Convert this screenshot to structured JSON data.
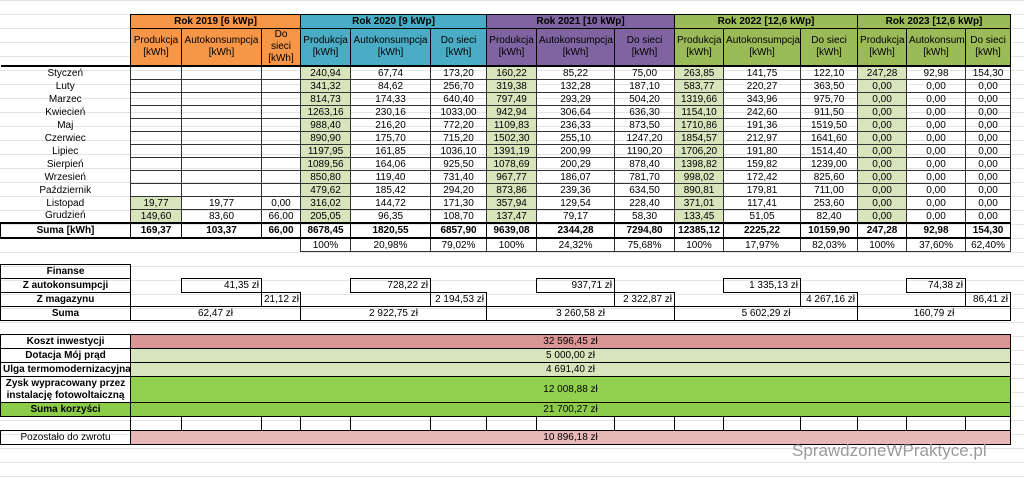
{
  "years": [
    {
      "title": "Rok 2019 [6 kWp]",
      "color": "#f79646"
    },
    {
      "title": "Rok 2020 [9 kWp]",
      "color": "#4bacc6"
    },
    {
      "title": "Rok 2021 [10 kWp]",
      "color": "#8064a2"
    },
    {
      "title": "Rok 2022 [12,6 kWp]",
      "color": "#9bbb59"
    },
    {
      "title": "Rok 2023 [12,6 kWp]",
      "color": "#9bbb59"
    }
  ],
  "col_headers": [
    [
      "Produkcja [kWh]",
      "Autokonsumpcja [kWh]",
      "Do sieci [kWh]"
    ],
    [
      "Produkcja [kWh]",
      "Autokonsumpcja [kWh]",
      "Do sieci [kWh]"
    ],
    [
      "Produkcja [kWh]",
      "Autokonsumpcja [kWh]",
      "Do sieci [kWh]"
    ],
    [
      "Produkcja [kWh]",
      "Autokonsumpcja [kWh]",
      "Do sieci [kWh]"
    ],
    [
      "Produkcja [kWh]",
      "Autokonsumpcja [kWh]",
      "Do sieci [kWh]"
    ]
  ],
  "months": [
    {
      "name": "Styczeń",
      "vals": [
        [
          "",
          "",
          ""
        ],
        [
          "240,94",
          "67,74",
          "173,20"
        ],
        [
          "160,22",
          "85,22",
          "75,00"
        ],
        [
          "263,85",
          "141,75",
          "122,10"
        ],
        [
          "247,28",
          "92,98",
          "154,30"
        ]
      ]
    },
    {
      "name": "Luty",
      "vals": [
        [
          "",
          "",
          ""
        ],
        [
          "341,32",
          "84,62",
          "256,70"
        ],
        [
          "319,38",
          "132,28",
          "187,10"
        ],
        [
          "583,77",
          "220,27",
          "363,50"
        ],
        [
          "0,00",
          "0,00",
          "0,00"
        ]
      ]
    },
    {
      "name": "Marzec",
      "vals": [
        [
          "",
          "",
          ""
        ],
        [
          "814,73",
          "174,33",
          "640,40"
        ],
        [
          "797,49",
          "293,29",
          "504,20"
        ],
        [
          "1319,66",
          "343,96",
          "975,70"
        ],
        [
          "0,00",
          "0,00",
          "0,00"
        ]
      ]
    },
    {
      "name": "Kwiecień",
      "vals": [
        [
          "",
          "",
          ""
        ],
        [
          "1263,16",
          "230,16",
          "1033,00"
        ],
        [
          "942,94",
          "306,64",
          "636,30"
        ],
        [
          "1154,10",
          "242,60",
          "911,50"
        ],
        [
          "0,00",
          "0,00",
          "0,00"
        ]
      ]
    },
    {
      "name": "Maj",
      "vals": [
        [
          "",
          "",
          ""
        ],
        [
          "988,40",
          "216,20",
          "772,20"
        ],
        [
          "1109,83",
          "236,33",
          "873,50"
        ],
        [
          "1710,86",
          "191,36",
          "1519,50"
        ],
        [
          "0,00",
          "0,00",
          "0,00"
        ]
      ]
    },
    {
      "name": "Czerwiec",
      "vals": [
        [
          "",
          "",
          ""
        ],
        [
          "890,90",
          "175,70",
          "715,20"
        ],
        [
          "1502,30",
          "255,10",
          "1247,20"
        ],
        [
          "1854,57",
          "212,97",
          "1641,60"
        ],
        [
          "0,00",
          "0,00",
          "0,00"
        ]
      ]
    },
    {
      "name": "Lipiec",
      "vals": [
        [
          "",
          "",
          ""
        ],
        [
          "1197,95",
          "161,85",
          "1036,10"
        ],
        [
          "1391,19",
          "200,99",
          "1190,20"
        ],
        [
          "1706,20",
          "191,80",
          "1514,40"
        ],
        [
          "0,00",
          "0,00",
          "0,00"
        ]
      ]
    },
    {
      "name": "Sierpień",
      "vals": [
        [
          "",
          "",
          ""
        ],
        [
          "1089,56",
          "164,06",
          "925,50"
        ],
        [
          "1078,69",
          "200,29",
          "878,40"
        ],
        [
          "1398,82",
          "159,82",
          "1239,00"
        ],
        [
          "0,00",
          "0,00",
          "0,00"
        ]
      ]
    },
    {
      "name": "Wrzesień",
      "vals": [
        [
          "",
          "",
          ""
        ],
        [
          "850,80",
          "119,40",
          "731,40"
        ],
        [
          "967,77",
          "186,07",
          "781,70"
        ],
        [
          "998,02",
          "172,42",
          "825,60"
        ],
        [
          "0,00",
          "0,00",
          "0,00"
        ]
      ]
    },
    {
      "name": "Październik",
      "vals": [
        [
          "",
          "",
          ""
        ],
        [
          "479,62",
          "185,42",
          "294,20"
        ],
        [
          "873,86",
          "239,36",
          "634,50"
        ],
        [
          "890,81",
          "179,81",
          "711,00"
        ],
        [
          "0,00",
          "0,00",
          "0,00"
        ]
      ]
    },
    {
      "name": "Listopad",
      "vals": [
        [
          "19,77",
          "19,77",
          "0,00"
        ],
        [
          "316,02",
          "144,72",
          "171,30"
        ],
        [
          "357,94",
          "129,54",
          "228,40"
        ],
        [
          "371,01",
          "117,41",
          "253,60"
        ],
        [
          "0,00",
          "0,00",
          "0,00"
        ]
      ]
    },
    {
      "name": "Grudzień",
      "vals": [
        [
          "149,60",
          "83,60",
          "66,00"
        ],
        [
          "205,05",
          "96,35",
          "108,70"
        ],
        [
          "137,47",
          "79,17",
          "58,30"
        ],
        [
          "133,45",
          "51,05",
          "82,40"
        ],
        [
          "0,00",
          "0,00",
          "0,00"
        ]
      ]
    }
  ],
  "sum": {
    "label": "Suma [kWh]",
    "vals": [
      [
        "169,37",
        "103,37",
        "66,00"
      ],
      [
        "8678,45",
        "1820,55",
        "6857,90"
      ],
      [
        "9639,08",
        "2344,28",
        "7294,80"
      ],
      [
        "12385,12",
        "2225,22",
        "10159,90"
      ],
      [
        "247,28",
        "92,98",
        "154,30"
      ]
    ]
  },
  "pct": [
    [
      "",
      "",
      ""
    ],
    [
      "100%",
      "20,98%",
      "79,02%"
    ],
    [
      "100%",
      "24,32%",
      "75,68%"
    ],
    [
      "100%",
      "17,97%",
      "82,03%"
    ],
    [
      "100%",
      "37,60%",
      "62,40%"
    ]
  ],
  "finance": {
    "title": "Finanse",
    "auto_label": "Z autokonsumpcji",
    "auto": [
      "41,35 zł",
      "728,22 zł",
      "937,71 zł",
      "1 335,13 zł",
      "74,38 zł"
    ],
    "mag_label": "Z magazynu",
    "mag": [
      "21,12 zł",
      "2 194,53 zł",
      "2 322,87 zł",
      "4 267,16 zł",
      "86,41 zł"
    ],
    "sum_label": "Suma",
    "sum": [
      "62,47 zł",
      "2 922,75 zł",
      "3 260,58 zł",
      "5 602,29 zł",
      "160,79 zł"
    ]
  },
  "summary": [
    {
      "label": "Koszt inwestycji",
      "value": "32 596,45 zł",
      "color": "#da9694"
    },
    {
      "label": "Dotacja Mój prąd",
      "value": "5 000,00 zł",
      "color": "#d8e4bc"
    },
    {
      "label": "Ulga termomodernizacyjna",
      "value": "4 691,40 zł",
      "color": "#d8e4bc"
    },
    {
      "label": "Zysk wypracowany przez instalację fotowoltaiczną",
      "value": "12 008,88 zł",
      "color": "#92d050"
    },
    {
      "label": "Suma korzyści",
      "value": "21 700,27 zł",
      "color": "#8ccc48"
    }
  ],
  "remaining": {
    "label": "Pozostało do zwrotu",
    "value": "10 896,18 zł",
    "color": "#e6b8b7"
  },
  "watermark": "SprawdzoneWPraktyce.pl"
}
